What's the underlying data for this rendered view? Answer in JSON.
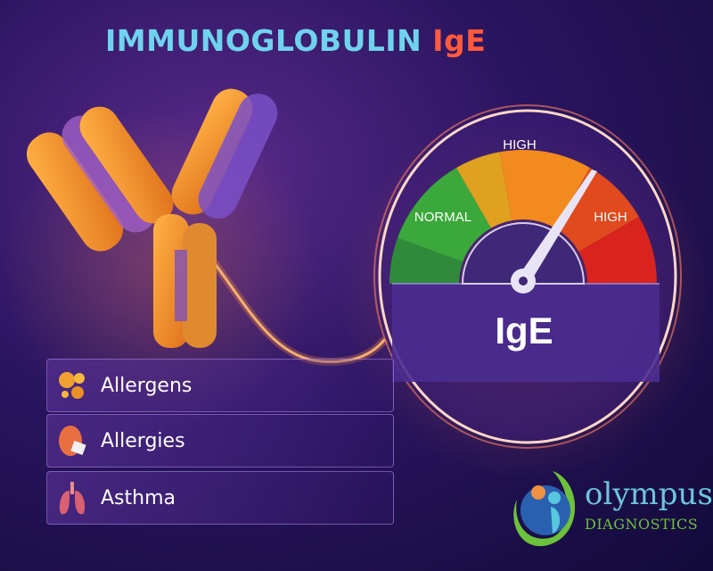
{
  "title": {
    "part1": "IMMUNOGLOBULIN",
    "part2": "IgE"
  },
  "gauge": {
    "labels": {
      "normal": "NORMAL",
      "high_top": "HIGH",
      "high_right": "HIGH"
    },
    "center_label": "IgE",
    "needle_zone": "high"
  },
  "panels": [
    {
      "label": "Allergens",
      "icon": "allergen-particles-icon"
    },
    {
      "label": "Allergies",
      "icon": "sneezing-face-icon"
    },
    {
      "label": "Asthma",
      "icon": "lungs-icon"
    }
  ],
  "logo": {
    "name": "olympus",
    "tagline": "DIAGNOSTICS"
  },
  "colors": {
    "title_primary": "#6fd3ee",
    "title_accent": "#ff5a3c",
    "normal": "#3aa83a",
    "elevated": "#f28a1e",
    "high": "#d8231e",
    "logo_blue": "#6cc4dc",
    "logo_green": "#6cc23a"
  }
}
